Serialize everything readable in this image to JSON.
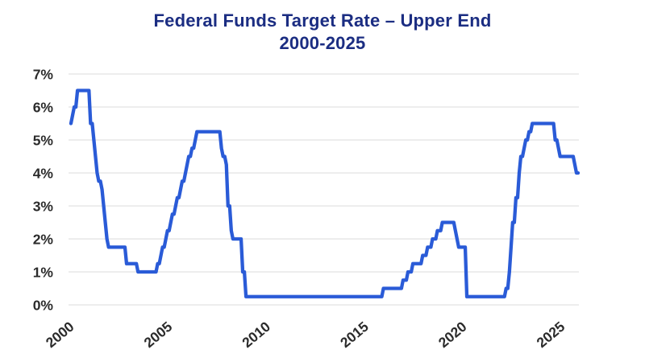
{
  "chart_data": {
    "type": "line",
    "title": "Federal Funds Target Rate – Upper End",
    "subtitle": "2000-2025",
    "xlabel": "",
    "ylabel": "",
    "x_start_year": 2000,
    "x_frequency": "monthly",
    "x_tick_years": [
      2000,
      2005,
      2010,
      2015,
      2020,
      2025
    ],
    "x_tick_labels": [
      "2000",
      "2005",
      "2010",
      "2015",
      "2020",
      "2025"
    ],
    "y_ticks": [
      0,
      1,
      2,
      3,
      4,
      5,
      6,
      7
    ],
    "y_tick_labels": [
      "0%",
      "1%",
      "2%",
      "3%",
      "4%",
      "5%",
      "6%",
      "7%"
    ],
    "ylim": [
      0,
      7
    ],
    "xlim": [
      2000,
      2026
    ],
    "grid": "horizontal",
    "legend": "none",
    "series": [
      {
        "name": "Federal Funds Target Rate (Upper End)",
        "values": [
          5.5,
          5.75,
          6,
          6,
          6.5,
          6.5,
          6.5,
          6.5,
          6.5,
          6.5,
          6.5,
          6.5,
          5.5,
          5.5,
          5,
          4.5,
          4,
          3.75,
          3.75,
          3.5,
          3,
          2.5,
          2,
          1.75,
          1.75,
          1.75,
          1.75,
          1.75,
          1.75,
          1.75,
          1.75,
          1.75,
          1.75,
          1.75,
          1.25,
          1.25,
          1.25,
          1.25,
          1.25,
          1.25,
          1.25,
          1,
          1,
          1,
          1,
          1,
          1,
          1,
          1,
          1,
          1,
          1,
          1,
          1.25,
          1.25,
          1.5,
          1.75,
          1.75,
          2,
          2.25,
          2.25,
          2.5,
          2.75,
          2.75,
          3,
          3.25,
          3.25,
          3.5,
          3.75,
          3.75,
          4,
          4.25,
          4.5,
          4.5,
          4.75,
          4.75,
          5,
          5.25,
          5.25,
          5.25,
          5.25,
          5.25,
          5.25,
          5.25,
          5.25,
          5.25,
          5.25,
          5.25,
          5.25,
          5.25,
          5.25,
          5.25,
          4.75,
          4.5,
          4.5,
          4.25,
          3,
          3,
          2.25,
          2,
          2,
          2,
          2,
          2,
          2,
          1,
          1,
          0.25,
          0.25,
          0.25,
          0.25,
          0.25,
          0.25,
          0.25,
          0.25,
          0.25,
          0.25,
          0.25,
          0.25,
          0.25,
          0.25,
          0.25,
          0.25,
          0.25,
          0.25,
          0.25,
          0.25,
          0.25,
          0.25,
          0.25,
          0.25,
          0.25,
          0.25,
          0.25,
          0.25,
          0.25,
          0.25,
          0.25,
          0.25,
          0.25,
          0.25,
          0.25,
          0.25,
          0.25,
          0.25,
          0.25,
          0.25,
          0.25,
          0.25,
          0.25,
          0.25,
          0.25,
          0.25,
          0.25,
          0.25,
          0.25,
          0.25,
          0.25,
          0.25,
          0.25,
          0.25,
          0.25,
          0.25,
          0.25,
          0.25,
          0.25,
          0.25,
          0.25,
          0.25,
          0.25,
          0.25,
          0.25,
          0.25,
          0.25,
          0.25,
          0.25,
          0.25,
          0.25,
          0.25,
          0.25,
          0.25,
          0.25,
          0.25,
          0.25,
          0.25,
          0.25,
          0.25,
          0.25,
          0.25,
          0.25,
          0.25,
          0.5,
          0.5,
          0.5,
          0.5,
          0.5,
          0.5,
          0.5,
          0.5,
          0.5,
          0.5,
          0.5,
          0.5,
          0.75,
          0.75,
          0.75,
          1,
          1,
          1,
          1.25,
          1.25,
          1.25,
          1.25,
          1.25,
          1.25,
          1.5,
          1.5,
          1.5,
          1.75,
          1.75,
          1.75,
          2,
          2,
          2,
          2.25,
          2.25,
          2.25,
          2.5,
          2.5,
          2.5,
          2.5,
          2.5,
          2.5,
          2.5,
          2.5,
          2.25,
          2,
          1.75,
          1.75,
          1.75,
          1.75,
          1.75,
          0.25,
          0.25,
          0.25,
          0.25,
          0.25,
          0.25,
          0.25,
          0.25,
          0.25,
          0.25,
          0.25,
          0.25,
          0.25,
          0.25,
          0.25,
          0.25,
          0.25,
          0.25,
          0.25,
          0.25,
          0.25,
          0.25,
          0.25,
          0.25,
          0.5,
          0.5,
          1,
          1.75,
          2.5,
          2.5,
          3.25,
          3.25,
          4,
          4.5,
          4.5,
          4.75,
          5,
          5,
          5.25,
          5.25,
          5.5,
          5.5,
          5.5,
          5.5,
          5.5,
          5.5,
          5.5,
          5.5,
          5.5,
          5.5,
          5.5,
          5.5,
          5.5,
          5.5,
          5,
          5,
          4.75,
          4.5,
          4.5,
          4.5,
          4.5,
          4.5,
          4.5,
          4.5,
          4.5,
          4.5,
          4.25,
          4,
          4
        ]
      }
    ],
    "colors": {
      "line": "#2a5bd7",
      "title": "#1b2d82",
      "tick_label": "#2b2b2b",
      "gridline": "#e2e2e2",
      "background": "#ffffff"
    }
  }
}
